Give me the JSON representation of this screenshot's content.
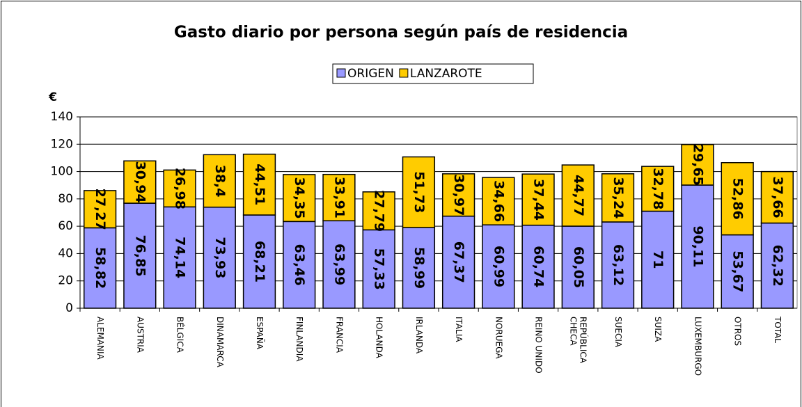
{
  "chart_data": {
    "type": "stacked_bar",
    "title": "Gasto diario por persona según país de residencia",
    "y_label": "€",
    "categories": [
      "ALEMANIA",
      "AUSTRIA",
      "BÉLGICA",
      "DINAMARCA",
      "ESPAÑA",
      "FINLANDIA",
      "FRANCIA",
      "HOLANDA",
      "IRLANDA",
      "ITALIA",
      "NORUEGA",
      "REINO UNIDO",
      "REPÚBLICA CHECA",
      "SUECIA",
      "SUIZA",
      "LUXEMBURGO",
      "OTROS",
      "TOTAL"
    ],
    "series": [
      {
        "name": "ORIGEN",
        "color": "#9999ff",
        "values": [
          58.82,
          76.85,
          74.14,
          73.93,
          68.21,
          63.46,
          63.99,
          57.33,
          58.99,
          67.37,
          60.99,
          60.74,
          60.05,
          63.12,
          71,
          90.11,
          53.67,
          62.32
        ],
        "value_labels": [
          "58,82",
          "76,85",
          "74,14",
          "73,93",
          "68,21",
          "63,46",
          "63,99",
          "57,33",
          "58,99",
          "67,37",
          "60,99",
          "60,74",
          "60,05",
          "63,12",
          "71",
          "90,11",
          "53,67",
          "62,32"
        ]
      },
      {
        "name": "LANZAROTE",
        "color": "#ffcc00",
        "values": [
          27.27,
          30.94,
          26.98,
          38.4,
          44.51,
          34.35,
          33.91,
          27.79,
          51.73,
          30.97,
          34.66,
          37.44,
          44.77,
          35.24,
          32.78,
          29.65,
          52.86,
          37.66
        ],
        "value_labels": [
          "27,27",
          "30,94",
          "26,98",
          "38,4",
          "44,51",
          "34,35",
          "33,91",
          "27,79",
          "51,73",
          "30,97",
          "34,66",
          "37,44",
          "44,77",
          "35,24",
          "32,78",
          "29,65",
          "52,86",
          "37,66"
        ]
      }
    ],
    "ylim": [
      0,
      140
    ],
    "yticks": [
      0,
      20,
      40,
      60,
      80,
      100,
      120,
      140
    ],
    "grid": true,
    "legend": "top"
  }
}
